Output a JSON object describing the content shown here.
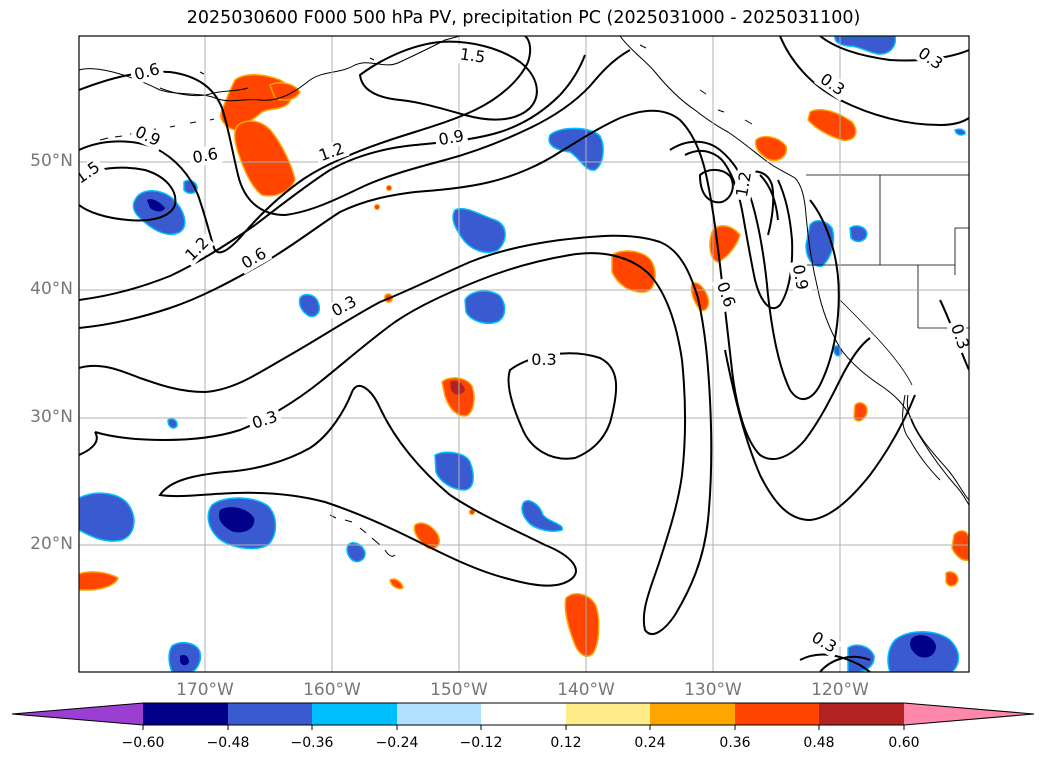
{
  "title": "2025030600 F000 500 hPa PV, precipitation PC (2025031000 - 2025031100)",
  "lat_labels": [
    "50°N",
    "40°N",
    "30°N",
    "20°N"
  ],
  "lon_labels": [
    "170°W",
    "160°W",
    "150°W",
    "140°W",
    "130°W",
    "120°W"
  ],
  "contour_labels": [
    "1.5",
    "1.5",
    "0.6",
    "0.9",
    "0.6",
    "1.2",
    "0.9",
    "1.2",
    "0.6",
    "0.3",
    "0.3",
    "0.3",
    "1.2",
    "0.6",
    "0.9",
    "0.3",
    "0.3",
    "0.3",
    "0.3"
  ],
  "colorbar": {
    "ticks": [
      "−0.60",
      "−0.48",
      "−0.36",
      "−0.24",
      "−0.12",
      "0.12",
      "0.24",
      "0.36",
      "0.48",
      "0.60"
    ],
    "colors": [
      "#9a3fd1",
      "#00008b",
      "#3a5bd0",
      "#00bfff",
      "#b0e2ff",
      "#ffffff",
      "#ffec8b",
      "#ffa500",
      "#ff4500",
      "#b22222",
      "#ff88aa"
    ]
  },
  "colors": {
    "neg_strong": "#00008b",
    "neg_mid": "#3a5bd0",
    "neg_light": "#00bfff",
    "pos_mid": "#ff4500",
    "pos_light": "#ffa500",
    "pos_faint": "#ffec8b",
    "pos_strong": "#b22222"
  }
}
